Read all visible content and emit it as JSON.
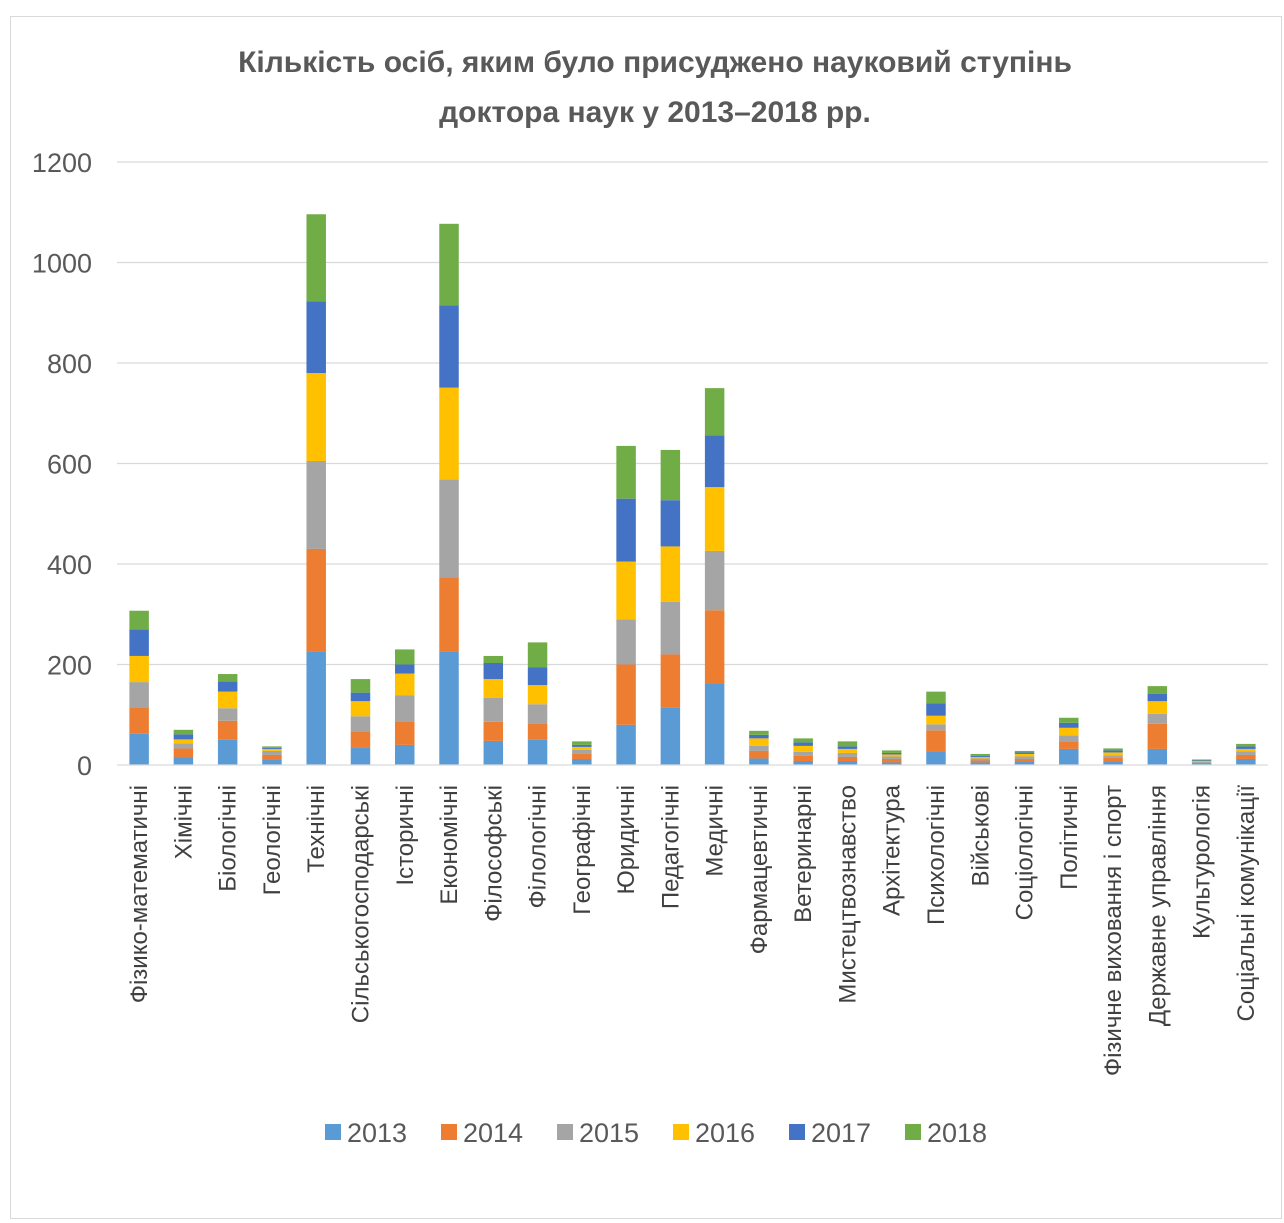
{
  "chart_data": {
    "type": "bar",
    "stacked": true,
    "title_lines": [
      "Кількість осіб, яким було присуджено науковий ступінь",
      "доктора наук у 2013–2018 рр."
    ],
    "categories": [
      "Фізико-математичні",
      "Хімічні",
      "Біологічні",
      "Геологічні",
      "Технічні",
      "Сільськогосподарські",
      "Історичні",
      "Економічні",
      "Філософські",
      "Філологічні",
      "Географічні",
      "Юридичні",
      "Педагогічні",
      "Медичні",
      "Фармацевтичні",
      "Ветеринарні",
      "Мистецтвознавство",
      "Архітектура",
      "Психологічні",
      "Військові",
      "Соціологічні",
      "Політичні",
      "Фізичне виховання і спорт",
      "Державне управління",
      "Культурологія",
      "Соціальні комунікації"
    ],
    "series": [
      {
        "name": "2013",
        "color": "#5b9bd5",
        "values": [
          62,
          15,
          50,
          10,
          225,
          35,
          40,
          225,
          48,
          50,
          12,
          80,
          115,
          163,
          13,
          8,
          8,
          5,
          27,
          5,
          7,
          32,
          7,
          32,
          2,
          12
        ]
      },
      {
        "name": "2014",
        "color": "#ed7d31",
        "values": [
          53,
          18,
          38,
          10,
          205,
          32,
          47,
          148,
          38,
          33,
          10,
          120,
          105,
          145,
          15,
          10,
          8,
          7,
          42,
          4,
          5,
          15,
          7,
          50,
          2,
          8
        ]
      },
      {
        "name": "2015",
        "color": "#a5a5a5",
        "values": [
          50,
          10,
          25,
          8,
          175,
          30,
          52,
          195,
          48,
          38,
          8,
          90,
          105,
          118,
          10,
          8,
          8,
          5,
          12,
          4,
          5,
          12,
          5,
          20,
          2,
          7
        ]
      },
      {
        "name": "2016",
        "color": "#ffc000",
        "values": [
          52,
          8,
          33,
          4,
          175,
          30,
          43,
          183,
          37,
          38,
          6,
          115,
          110,
          127,
          15,
          12,
          8,
          4,
          17,
          3,
          5,
          15,
          6,
          25,
          2,
          5
        ]
      },
      {
        "name": "2017",
        "color": "#4472c4",
        "values": [
          53,
          10,
          20,
          2,
          143,
          17,
          18,
          164,
          32,
          35,
          4,
          125,
          92,
          103,
          7,
          7,
          5,
          3,
          25,
          2,
          3,
          10,
          4,
          15,
          1,
          5
        ]
      },
      {
        "name": "2018",
        "color": "#70ad47",
        "values": [
          37,
          9,
          15,
          3,
          173,
          27,
          30,
          162,
          14,
          50,
          7,
          105,
          100,
          94,
          8,
          8,
          10,
          5,
          23,
          4,
          3,
          10,
          4,
          15,
          2,
          5
        ]
      }
    ],
    "ylim": [
      0,
      1200
    ],
    "yticks": [
      0,
      200,
      400,
      600,
      800,
      1000,
      1200
    ],
    "grid": true,
    "legend_position": "bottom"
  }
}
